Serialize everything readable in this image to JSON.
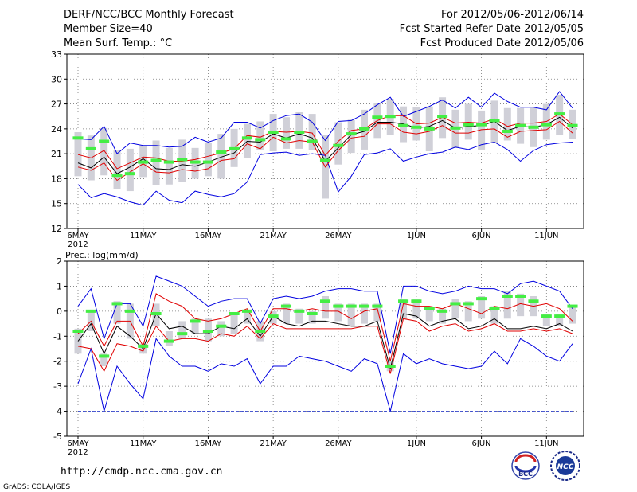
{
  "header": {
    "title": "DERF/NCC/BCC Monthly Forecast",
    "member_size": "Member Size=40",
    "variable": "Mean Surf. Temp.: °C",
    "period": "For 2012/05/06-2012/06/14",
    "fcst_started": "Fcst Started Refer Date 2012/05/05",
    "fcst_produced": "Fcst Produced Date 2012/05/06"
  },
  "footer": {
    "url": "http://cmdp.ncc.cma.gov.cn",
    "credit": "GrADS: COLA/IGES",
    "logo_bcc": "BCC",
    "logo_ncc": "NCC"
  },
  "colors": {
    "box": "#d0d0d8",
    "mean": "#000000",
    "spread": "#e00000",
    "extreme": "#0000e0",
    "obs": "#44ee44",
    "grid": "#777777"
  },
  "chart_data": [
    {
      "type": "line",
      "title": "Mean Surf. Temp.: °C",
      "x_tick_labels": [
        "6MAY",
        "11MAY",
        "16MAY",
        "21MAY",
        "26MAY",
        "1JUN",
        "6JUN",
        "11JUN"
      ],
      "x_tick_days": [
        0,
        5,
        10,
        15,
        20,
        26,
        31,
        36
      ],
      "x_first_year": "2012",
      "ylim": [
        12,
        33
      ],
      "yticks": [
        12,
        15,
        18,
        21,
        24,
        27,
        30,
        33
      ],
      "grid": true,
      "days": 39,
      "series": [
        {
          "name": "max",
          "values": [
            17.3,
            15.7,
            16.2,
            15.8,
            15.2,
            14.8,
            16.5,
            15.4,
            15.1,
            16.5,
            16.1,
            15.8,
            16.2,
            17.6,
            20.9,
            21.1,
            21.2,
            20.8,
            21.0,
            20.8,
            16.4,
            18.3,
            20.9,
            21.1,
            21.6,
            20.1,
            20.6,
            21.0,
            21.2,
            21.8,
            21.5,
            22.1,
            22.4,
            21.5,
            20.1,
            21.4,
            22.1,
            22.3,
            22.4
          ]
        },
        {
          "name": "spread_high",
          "values": [
            20.9,
            20.5,
            21.4,
            19.2,
            19.9,
            20.6,
            20.5,
            20.1,
            20.1,
            20.3,
            20.7,
            21.1,
            21.6,
            23.2,
            23.0,
            23.7,
            23.6,
            23.7,
            23.5,
            20.8,
            22.5,
            23.8,
            24.0,
            25.0,
            25.6,
            25.6,
            24.6,
            24.7,
            25.4,
            24.7,
            24.8,
            24.7,
            25.2,
            24.3,
            24.7,
            24.7,
            24.9,
            25.8,
            24.5
          ]
        },
        {
          "name": "mean",
          "values": [
            19.9,
            19.3,
            20.6,
            18.6,
            19.4,
            20.4,
            19.2,
            19.1,
            19.7,
            19.5,
            20.0,
            20.6,
            21.1,
            22.5,
            22.4,
            23.4,
            22.9,
            23.4,
            22.9,
            20.1,
            21.7,
            23.3,
            23.7,
            24.8,
            24.8,
            24.6,
            24.1,
            24.3,
            25.0,
            24.1,
            24.3,
            24.4,
            24.9,
            23.8,
            24.3,
            24.2,
            24.5,
            25.4,
            24.1
          ]
        },
        {
          "name": "spread_low",
          "values": [
            19.4,
            19.0,
            19.9,
            17.8,
            18.8,
            19.8,
            18.8,
            18.7,
            19.1,
            18.9,
            19.2,
            20.2,
            20.4,
            22.2,
            21.6,
            23.0,
            22.3,
            22.6,
            22.4,
            19.4,
            21.4,
            22.9,
            23.1,
            24.6,
            24.6,
            23.6,
            23.4,
            23.7,
            24.4,
            23.5,
            23.5,
            23.9,
            24.0,
            23.0,
            23.7,
            23.8,
            23.9,
            24.9,
            23.5
          ]
        },
        {
          "name": "min",
          "values": [
            22.8,
            22.7,
            24.3,
            21.0,
            22.3,
            22.0,
            22.0,
            21.8,
            21.9,
            23.0,
            22.4,
            22.9,
            24.8,
            24.8,
            24.1,
            25.0,
            25.6,
            25.8,
            24.8,
            22.6,
            24.9,
            25.0,
            25.8,
            26.9,
            27.8,
            25.5,
            26.1,
            26.7,
            27.5,
            26.5,
            27.8,
            26.6,
            28.3,
            27.3,
            26.6,
            26.6,
            26.3,
            28.5,
            26.5
          ]
        },
        {
          "name": "observed",
          "values": [
            22.9,
            21.6,
            22.5,
            18.4,
            18.6,
            20.0,
            20.2,
            20.0,
            20.3,
            20.0,
            20.0,
            21.2,
            21.6,
            22.9,
            22.7,
            23.6,
            22.8,
            23.6,
            22.5,
            20.2,
            22.0,
            23.4,
            24.0,
            25.4,
            25.5,
            24.4,
            24.2,
            24.0,
            25.5,
            24.1,
            24.5,
            24.5,
            25.0,
            23.7,
            24.4,
            24.2,
            24.5,
            25.8,
            24.4
          ]
        },
        {
          "name": "box_high",
          "values": [
            23.6,
            23.2,
            24.1,
            21.4,
            21.6,
            22.0,
            22.6,
            21.7,
            22.7,
            21.7,
            22.3,
            23.4,
            24.0,
            24.6,
            24.9,
            25.8,
            25.4,
            26.0,
            25.8,
            23.3,
            24.8,
            25.1,
            26.3,
            27.1,
            27.6,
            26.7,
            26.6,
            26.7,
            27.8,
            26.3,
            27.0,
            26.2,
            27.4,
            26.5,
            26.5,
            26.5,
            27.0,
            28.1,
            26.3
          ]
        },
        {
          "name": "box_low",
          "values": [
            18.3,
            17.8,
            18.4,
            16.7,
            16.5,
            18.2,
            17.2,
            17.3,
            17.6,
            18.0,
            18.3,
            18.0,
            19.4,
            20.5,
            21.4,
            21.3,
            21.6,
            21.6,
            21.4,
            15.6,
            19.7,
            21.1,
            21.5,
            22.9,
            23.3,
            22.4,
            22.6,
            21.3,
            22.9,
            21.7,
            22.7,
            21.5,
            22.3,
            22.6,
            22.2,
            21.8,
            22.7,
            23.3,
            22.8
          ]
        }
      ]
    },
    {
      "type": "line",
      "title": "Prec.: log(mm/d)",
      "x_tick_labels": [
        "6MAY",
        "11MAY",
        "16MAY",
        "21MAY",
        "26MAY",
        "1JUN",
        "6JUN",
        "11JUN"
      ],
      "x_tick_days": [
        0,
        5,
        10,
        15,
        20,
        26,
        31,
        36
      ],
      "x_first_year": "2012",
      "ylim": [
        -5,
        2
      ],
      "yticks": [
        -5,
        -4,
        -3,
        -2,
        -1,
        0,
        1,
        2
      ],
      "grid": true,
      "days": 39,
      "series": [
        {
          "name": "max",
          "values": [
            0.2,
            0.9,
            -1.1,
            0.3,
            0.3,
            -0.6,
            1.4,
            1.2,
            1.0,
            0.6,
            0.2,
            0.4,
            0.5,
            0.5,
            -0.5,
            0.5,
            0.6,
            0.5,
            0.6,
            0.8,
            0.9,
            0.9,
            0.8,
            0.8,
            -1.7,
            1.0,
            1.0,
            0.8,
            0.7,
            0.8,
            1.0,
            0.9,
            0.9,
            0.7,
            1.1,
            1.2,
            1.0,
            0.8,
            0.1
          ]
        },
        {
          "name": "spread_high",
          "values": [
            -0.9,
            -0.4,
            -1.4,
            -0.4,
            -0.4,
            -1.4,
            0.7,
            0.4,
            0.2,
            -0.3,
            -0.4,
            -0.3,
            -0.1,
            0.1,
            -0.8,
            0.1,
            0.1,
            0.0,
            0.1,
            0.0,
            0.0,
            -0.3,
            0.0,
            0.1,
            -2.0,
            0.3,
            0.2,
            0.2,
            0.1,
            0.3,
            0.1,
            -0.1,
            0.2,
            0.1,
            0.3,
            0.2,
            0.3,
            0.1,
            -0.4
          ]
        },
        {
          "name": "mean",
          "values": [
            -1.2,
            -0.5,
            -1.7,
            -0.6,
            -1.0,
            -1.5,
            -0.1,
            -0.7,
            -0.6,
            -0.9,
            -0.9,
            -0.6,
            -0.7,
            -0.3,
            -1.0,
            -0.2,
            -0.5,
            -0.6,
            -0.4,
            -0.4,
            -0.5,
            -0.6,
            -0.6,
            -0.4,
            -2.3,
            -0.1,
            -0.2,
            -0.6,
            -0.4,
            -0.3,
            -0.7,
            -0.6,
            -0.3,
            -0.7,
            -0.7,
            -0.6,
            -0.7,
            -0.5,
            -0.8
          ]
        },
        {
          "name": "spread_low",
          "values": [
            -1.4,
            -1.5,
            -2.4,
            -1.3,
            -1.4,
            -1.6,
            -0.6,
            -1.2,
            -1.1,
            -1.1,
            -1.2,
            -0.9,
            -1.0,
            -0.6,
            -1.1,
            -0.5,
            -0.7,
            -0.7,
            -0.7,
            -0.7,
            -0.7,
            -0.7,
            -0.6,
            -0.6,
            -2.5,
            -0.3,
            -0.4,
            -0.8,
            -0.6,
            -0.5,
            -0.8,
            -0.7,
            -0.5,
            -0.8,
            -0.8,
            -0.7,
            -0.8,
            -0.7,
            -0.9
          ]
        },
        {
          "name": "min",
          "values": [
            -2.9,
            -1.5,
            -4.0,
            -2.2,
            -2.9,
            -3.5,
            -1.1,
            -1.8,
            -2.2,
            -2.2,
            -2.4,
            -2.1,
            -2.2,
            -1.9,
            -2.9,
            -2.2,
            -2.2,
            -1.8,
            -1.9,
            -2.0,
            -2.2,
            -2.4,
            -1.9,
            -2.1,
            -4.0,
            -1.7,
            -2.1,
            -1.9,
            -2.1,
            -2.2,
            -2.3,
            -2.2,
            -1.6,
            -2.1,
            -1.1,
            -1.4,
            -1.8,
            -2.0,
            -1.3
          ]
        },
        {
          "name": "observed",
          "values": [
            -0.8,
            0.0,
            -1.8,
            0.3,
            0.0,
            -1.4,
            -0.1,
            -1.2,
            -0.9,
            -0.4,
            -0.8,
            -0.6,
            -0.1,
            0.0,
            -0.8,
            -0.2,
            0.2,
            0.0,
            -0.1,
            0.4,
            0.2,
            0.2,
            0.2,
            0.2,
            -2.2,
            0.4,
            0.4,
            0.1,
            0.0,
            0.3,
            0.3,
            0.5,
            0.1,
            0.6,
            0.6,
            0.4,
            -0.2,
            -0.2,
            0.2
          ]
        },
        {
          "name": "box_high",
          "values": [
            -0.7,
            0.0,
            -1.7,
            0.4,
            0.3,
            -1.3,
            0.3,
            -0.8,
            -0.4,
            -0.3,
            -0.3,
            -0.4,
            -0.1,
            0.0,
            -0.4,
            0.0,
            0.3,
            0.1,
            0.0,
            0.6,
            0.3,
            0.3,
            0.3,
            0.3,
            -2.0,
            0.5,
            0.5,
            0.2,
            0.1,
            0.5,
            0.4,
            0.6,
            0.2,
            0.8,
            0.7,
            0.6,
            -0.1,
            -0.1,
            0.2
          ]
        },
        {
          "name": "box_low",
          "values": [
            -1.7,
            -0.8,
            -2.2,
            -0.5,
            -1.1,
            -1.7,
            -0.6,
            -1.4,
            -1.1,
            -0.9,
            -1.2,
            -1.0,
            -0.9,
            -0.5,
            -1.2,
            -0.5,
            -0.5,
            -0.5,
            -0.5,
            -0.3,
            -0.4,
            -0.6,
            -0.5,
            -0.4,
            -2.4,
            -0.3,
            -0.3,
            -0.4,
            -0.5,
            -0.3,
            -0.4,
            -0.3,
            -0.5,
            -0.3,
            -0.2,
            -0.2,
            -0.6,
            -0.6,
            -0.5
          ]
        },
        {
          "name": "lower_floor",
          "values": [
            -4.0,
            -4.0,
            -4.0,
            -4.0,
            -4.0,
            -4.0,
            -4.0,
            -4.0,
            -4.0,
            -4.0,
            -4.0,
            -4.0,
            -4.0,
            -4.0,
            -4.0,
            -4.0,
            -4.0,
            -4.0,
            -4.0,
            -4.0,
            -4.0,
            -4.0,
            -4.0,
            -4.0,
            -4.0,
            -4.0,
            -4.0,
            -4.0,
            -4.0,
            -4.0,
            -4.0,
            -4.0,
            -4.0,
            -4.0,
            -4.0,
            -4.0,
            -4.0,
            -4.0,
            -4.0
          ]
        }
      ]
    }
  ]
}
